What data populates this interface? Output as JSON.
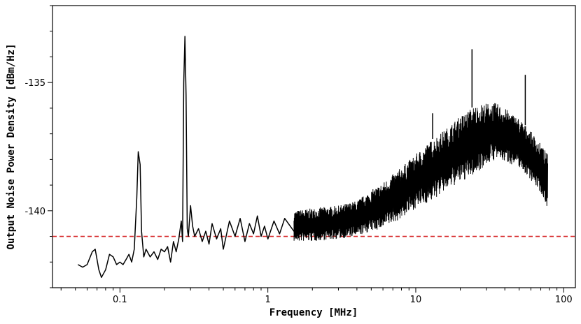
{
  "chart_data": {
    "type": "line",
    "title": "",
    "xlabel": "Frequency [MHz]",
    "ylabel": "Output Noise Power Density [dBm/Hz]",
    "xscale": "log",
    "xlim": [
      0.035,
      120
    ],
    "ylim": [
      -143,
      -132
    ],
    "xticks": [
      {
        "value": 0.1,
        "label": "0.1"
      },
      {
        "value": 1,
        "label": "1"
      },
      {
        "value": 10,
        "label": "10"
      },
      {
        "value": 100,
        "label": "100"
      }
    ],
    "yticks": [
      {
        "value": -135,
        "label": "-135"
      },
      {
        "value": -140,
        "label": "-140"
      }
    ],
    "grid": false,
    "series": [
      {
        "color": "#000000",
        "style": "solid",
        "points": [
          [
            0.052,
            -142.1
          ],
          [
            0.056,
            -142.2
          ],
          [
            0.06,
            -142.1
          ],
          [
            0.065,
            -141.6
          ],
          [
            0.068,
            -141.5
          ],
          [
            0.072,
            -142.3
          ],
          [
            0.075,
            -142.6
          ],
          [
            0.08,
            -142.3
          ],
          [
            0.085,
            -141.7
          ],
          [
            0.09,
            -141.8
          ],
          [
            0.095,
            -142.1
          ],
          [
            0.1,
            -142.0
          ],
          [
            0.105,
            -142.1
          ],
          [
            0.11,
            -141.9
          ],
          [
            0.115,
            -141.7
          ],
          [
            0.12,
            -142.0
          ],
          [
            0.125,
            -141.5
          ],
          [
            0.13,
            -139.5
          ],
          [
            0.133,
            -137.7
          ],
          [
            0.137,
            -138.2
          ],
          [
            0.14,
            -140.8
          ],
          [
            0.145,
            -141.8
          ],
          [
            0.15,
            -141.5
          ],
          [
            0.16,
            -141.8
          ],
          [
            0.17,
            -141.6
          ],
          [
            0.18,
            -141.9
          ],
          [
            0.19,
            -141.5
          ],
          [
            0.2,
            -141.6
          ],
          [
            0.21,
            -141.4
          ],
          [
            0.22,
            -142.0
          ],
          [
            0.23,
            -141.2
          ],
          [
            0.24,
            -141.6
          ],
          [
            0.25,
            -141.1
          ],
          [
            0.26,
            -140.4
          ],
          [
            0.265,
            -141.2
          ],
          [
            0.27,
            -135.0
          ],
          [
            0.275,
            -133.2
          ],
          [
            0.28,
            -135.5
          ],
          [
            0.285,
            -140.7
          ],
          [
            0.29,
            -141.0
          ],
          [
            0.3,
            -139.8
          ],
          [
            0.31,
            -140.6
          ],
          [
            0.32,
            -141.0
          ],
          [
            0.34,
            -140.7
          ],
          [
            0.36,
            -141.2
          ],
          [
            0.38,
            -140.8
          ],
          [
            0.4,
            -141.3
          ],
          [
            0.42,
            -140.5
          ],
          [
            0.45,
            -141.1
          ],
          [
            0.48,
            -140.7
          ],
          [
            0.5,
            -141.5
          ],
          [
            0.55,
            -140.4
          ],
          [
            0.6,
            -141.0
          ],
          [
            0.65,
            -140.3
          ],
          [
            0.7,
            -141.2
          ],
          [
            0.75,
            -140.5
          ],
          [
            0.8,
            -140.9
          ],
          [
            0.85,
            -140.2
          ],
          [
            0.9,
            -141.0
          ],
          [
            0.95,
            -140.6
          ],
          [
            1.0,
            -141.1
          ],
          [
            1.1,
            -140.4
          ],
          [
            1.2,
            -140.9
          ],
          [
            1.3,
            -140.3
          ],
          [
            1.5,
            -140.8
          ],
          [
            1.7,
            -140.2
          ],
          [
            2.0,
            -140.7
          ],
          [
            2.3,
            -140.3
          ],
          [
            2.6,
            -140.6
          ],
          [
            3.0,
            -140.4
          ],
          [
            3.5,
            -140.5
          ],
          [
            4.0,
            -140.2
          ]
        ]
      }
    ],
    "envelope": {
      "color": "#000000",
      "upper": [
        [
          1.5,
          -140.0
        ],
        [
          2.0,
          -139.9
        ],
        [
          3.0,
          -139.8
        ],
        [
          4.0,
          -139.6
        ],
        [
          5.0,
          -139.2
        ],
        [
          6.0,
          -138.9
        ],
        [
          8.0,
          -138.3
        ],
        [
          10.0,
          -137.8
        ],
        [
          13.0,
          -137.2
        ],
        [
          16.0,
          -136.8
        ],
        [
          20.0,
          -136.3
        ],
        [
          25.0,
          -135.9
        ],
        [
          30.0,
          -135.8
        ],
        [
          35.0,
          -135.8
        ],
        [
          40.0,
          -136.0
        ],
        [
          50.0,
          -136.4
        ],
        [
          60.0,
          -136.9
        ],
        [
          70.0,
          -137.4
        ],
        [
          78.0,
          -137.8
        ]
      ],
      "lower": [
        [
          1.5,
          -141.2
        ],
        [
          2.0,
          -141.2
        ],
        [
          3.0,
          -141.1
        ],
        [
          4.0,
          -141.0
        ],
        [
          5.0,
          -140.8
        ],
        [
          6.0,
          -140.7
        ],
        [
          8.0,
          -140.3
        ],
        [
          10.0,
          -139.9
        ],
        [
          13.0,
          -139.6
        ],
        [
          16.0,
          -139.2
        ],
        [
          20.0,
          -138.9
        ],
        [
          25.0,
          -138.6
        ],
        [
          30.0,
          -138.2
        ],
        [
          35.0,
          -138.0
        ],
        [
          40.0,
          -138.1
        ],
        [
          50.0,
          -138.3
        ],
        [
          60.0,
          -138.8
        ],
        [
          70.0,
          -139.3
        ],
        [
          78.0,
          -139.9
        ]
      ]
    },
    "spurs": [
      {
        "x": 13.0,
        "y": -136.2
      },
      {
        "x": 24.0,
        "y": -133.7
      },
      {
        "x": 55.0,
        "y": -134.7
      }
    ],
    "reference_line": {
      "y": -141.0,
      "color": "#d62728",
      "style": "dashed"
    }
  }
}
